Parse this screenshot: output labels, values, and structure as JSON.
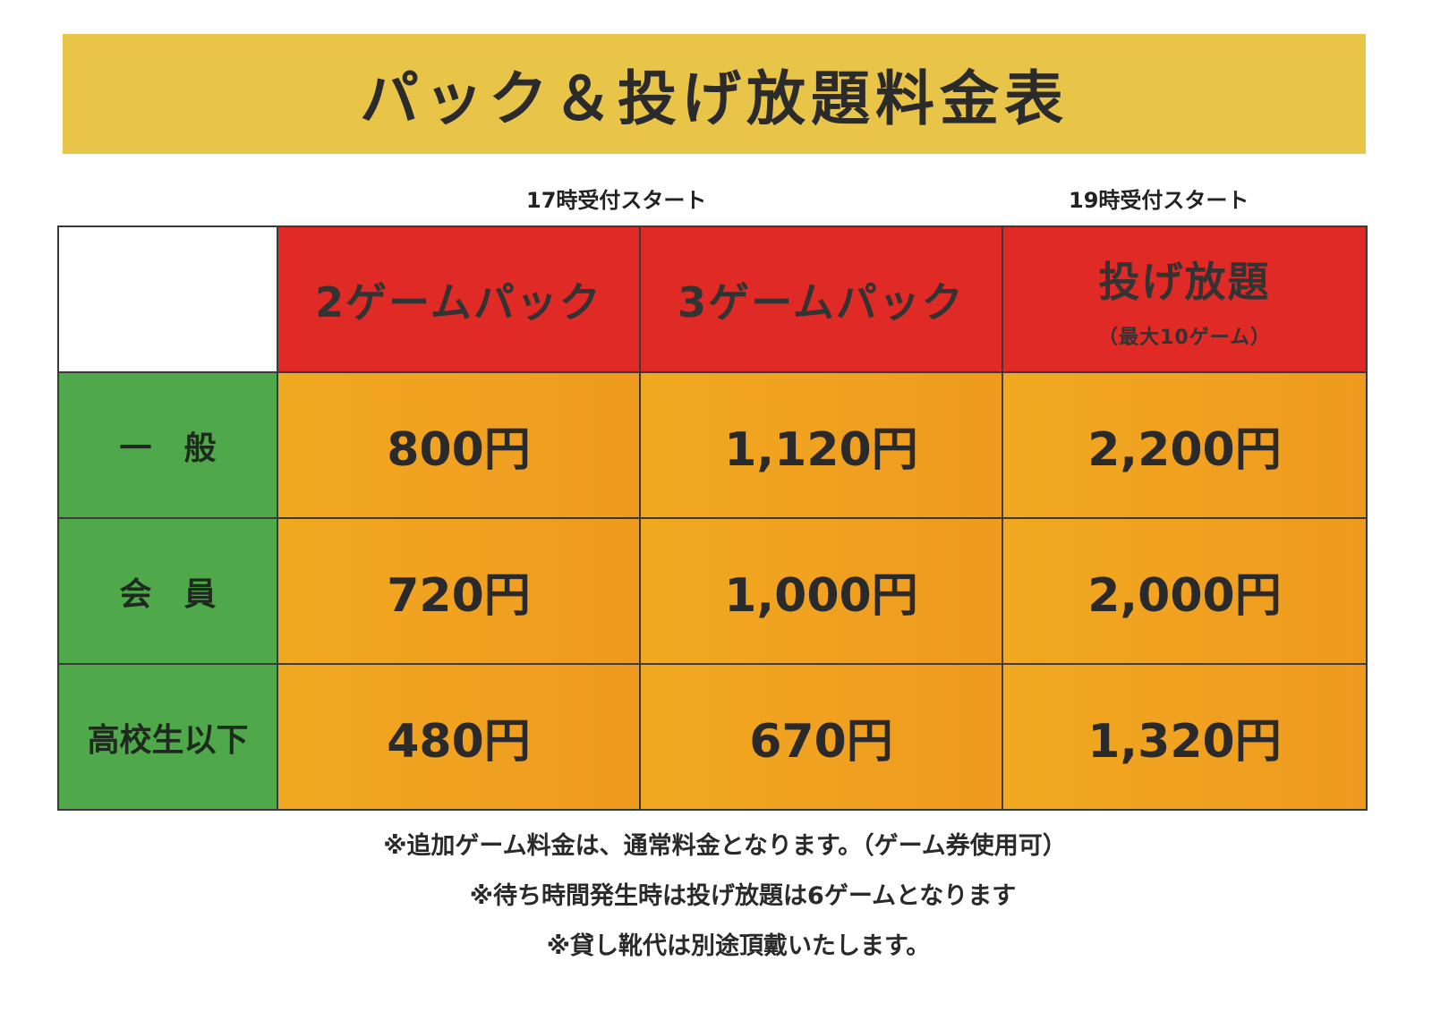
{
  "title": "パック＆投げ放題料金表",
  "start_labels": {
    "left": "17時受付スタート",
    "right": "19時受付スタート"
  },
  "table": {
    "columns": [
      {
        "label": "2ゲームパック",
        "sub": ""
      },
      {
        "label": "3ゲームパック",
        "sub": ""
      },
      {
        "label": "投げ放題",
        "sub": "（最大10ゲーム）"
      }
    ],
    "rows": [
      {
        "label": "一　般",
        "prices": [
          "800円",
          "1,120円",
          "2,200円"
        ]
      },
      {
        "label": "会　員",
        "prices": [
          "720円",
          "1,000円",
          "2,000円"
        ]
      },
      {
        "label": "高校生以下",
        "prices": [
          "480円",
          "670円",
          "1,320円"
        ]
      }
    ]
  },
  "notes": [
    "※追加ゲーム料金は、通常料金となります。（ゲーム券使用可）",
    "※待ち時間発生時は投げ放題は6ゲームとなります",
    "※貸し靴代は別途頂戴いたします。"
  ],
  "colors": {
    "banner": "#e8c449",
    "header": "#e02a25",
    "row_label": "#4fa84a",
    "price": "#f0a820"
  }
}
